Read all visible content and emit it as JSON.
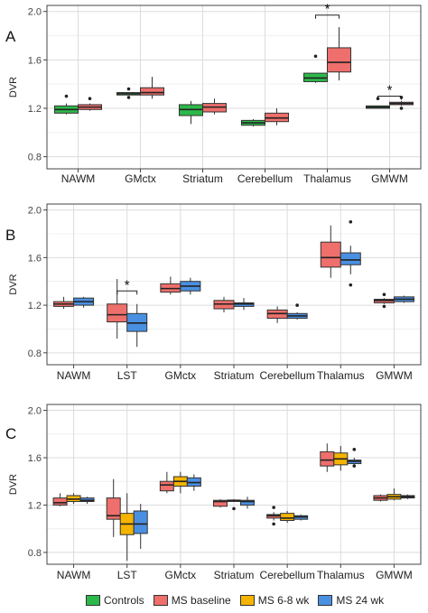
{
  "chart_data": [
    {
      "type": "boxplot",
      "panel_label": "A",
      "ylabel": "DVR",
      "ylim": [
        0.7,
        2.05
      ],
      "yticks": [
        "0.8",
        "1.2",
        "1.6",
        "2.0"
      ],
      "grid": true,
      "categories": [
        "NAWM",
        "GMctx",
        "Striatum",
        "Cerebellum",
        "Thalamus",
        "GMWM"
      ],
      "groups": [
        [
          {
            "group": "Controls",
            "min": 1.15,
            "q1": 1.16,
            "median": 1.19,
            "q3": 1.22,
            "max": 1.24,
            "outliers": [
              1.3
            ]
          },
          {
            "group": "MS baseline",
            "min": 1.18,
            "q1": 1.19,
            "median": 1.21,
            "q3": 1.23,
            "max": 1.24,
            "outliers": [
              1.28
            ]
          }
        ],
        [
          {
            "group": "Controls",
            "min": 1.31,
            "q1": 1.31,
            "median": 1.32,
            "q3": 1.33,
            "max": 1.33,
            "outliers": [
              1.29,
              1.36
            ]
          },
          {
            "group": "MS baseline",
            "min": 1.28,
            "q1": 1.31,
            "median": 1.33,
            "q3": 1.37,
            "max": 1.46,
            "outliers": []
          }
        ],
        [
          {
            "group": "Controls",
            "min": 1.07,
            "q1": 1.14,
            "median": 1.19,
            "q3": 1.23,
            "max": 1.26,
            "outliers": []
          },
          {
            "group": "MS baseline",
            "min": 1.15,
            "q1": 1.17,
            "median": 1.21,
            "q3": 1.24,
            "max": 1.28,
            "outliers": []
          }
        ],
        [
          {
            "group": "Controls",
            "min": 1.05,
            "q1": 1.06,
            "median": 1.08,
            "q3": 1.1,
            "max": 1.11,
            "outliers": []
          },
          {
            "group": "MS baseline",
            "min": 1.06,
            "q1": 1.09,
            "median": 1.12,
            "q3": 1.16,
            "max": 1.2,
            "outliers": []
          }
        ],
        [
          {
            "group": "Controls",
            "min": 1.41,
            "q1": 1.42,
            "median": 1.45,
            "q3": 1.49,
            "max": 1.49,
            "outliers": [
              1.63
            ]
          },
          {
            "group": "MS baseline",
            "min": 1.43,
            "q1": 1.5,
            "median": 1.58,
            "q3": 1.7,
            "max": 1.87,
            "outliers": []
          }
        ],
        [
          {
            "group": "Controls",
            "min": 1.2,
            "q1": 1.2,
            "median": 1.21,
            "q3": 1.22,
            "max": 1.22,
            "outliers": [
              1.28
            ]
          },
          {
            "group": "MS baseline",
            "min": 1.22,
            "q1": 1.23,
            "median": 1.24,
            "q3": 1.25,
            "max": 1.26,
            "outliers": [
              1.2,
              1.29
            ]
          }
        ]
      ],
      "significance": [
        {
          "category": "Thalamus",
          "label": "*",
          "y": 1.97
        },
        {
          "category": "GMWM",
          "label": "*",
          "y": 1.3
        }
      ]
    },
    {
      "type": "boxplot",
      "panel_label": "B",
      "ylabel": "DVR",
      "ylim": [
        0.7,
        2.05
      ],
      "yticks": [
        "0.8",
        "1.2",
        "1.6",
        "2.0"
      ],
      "grid": true,
      "categories": [
        "NAWM",
        "LST",
        "GMctx",
        "Striatum",
        "Cerebellum",
        "Thalamus",
        "GMWM"
      ],
      "groups": [
        [
          {
            "group": "MS baseline",
            "min": 1.17,
            "q1": 1.19,
            "median": 1.21,
            "q3": 1.23,
            "max": 1.27,
            "outliers": []
          },
          {
            "group": "MS 24 wk",
            "min": 1.18,
            "q1": 1.2,
            "median": 1.23,
            "q3": 1.26,
            "max": 1.27,
            "outliers": []
          }
        ],
        [
          {
            "group": "MS baseline",
            "min": 0.92,
            "q1": 1.06,
            "median": 1.12,
            "q3": 1.21,
            "max": 1.42,
            "outliers": []
          },
          {
            "group": "MS 24 wk",
            "min": 0.85,
            "q1": 0.98,
            "median": 1.05,
            "q3": 1.13,
            "max": 1.21,
            "outliers": []
          }
        ],
        [
          {
            "group": "MS baseline",
            "min": 1.29,
            "q1": 1.31,
            "median": 1.34,
            "q3": 1.38,
            "max": 1.44,
            "outliers": []
          },
          {
            "group": "MS 24 wk",
            "min": 1.29,
            "q1": 1.32,
            "median": 1.36,
            "q3": 1.4,
            "max": 1.43,
            "outliers": []
          }
        ],
        [
          {
            "group": "MS baseline",
            "min": 1.14,
            "q1": 1.17,
            "median": 1.21,
            "q3": 1.24,
            "max": 1.27,
            "outliers": []
          },
          {
            "group": "MS 24 wk",
            "min": 1.16,
            "q1": 1.19,
            "median": 1.21,
            "q3": 1.22,
            "max": 1.26,
            "outliers": []
          }
        ],
        [
          {
            "group": "MS baseline",
            "min": 1.05,
            "q1": 1.09,
            "median": 1.13,
            "q3": 1.16,
            "max": 1.19,
            "outliers": []
          },
          {
            "group": "MS 24 wk",
            "min": 1.08,
            "q1": 1.09,
            "median": 1.11,
            "q3": 1.13,
            "max": 1.14,
            "outliers": [
              1.2
            ]
          }
        ],
        [
          {
            "group": "MS baseline",
            "min": 1.43,
            "q1": 1.52,
            "median": 1.6,
            "q3": 1.73,
            "max": 1.87,
            "outliers": []
          },
          {
            "group": "MS 24 wk",
            "min": 1.46,
            "q1": 1.54,
            "median": 1.58,
            "q3": 1.64,
            "max": 1.7,
            "outliers": [
              1.9,
              1.37
            ]
          }
        ],
        [
          {
            "group": "MS baseline",
            "min": 1.21,
            "q1": 1.22,
            "median": 1.24,
            "q3": 1.25,
            "max": 1.26,
            "outliers": [
              1.19,
              1.29
            ]
          },
          {
            "group": "MS 24 wk",
            "min": 1.22,
            "q1": 1.23,
            "median": 1.25,
            "q3": 1.27,
            "max": 1.28,
            "outliers": []
          }
        ]
      ],
      "significance": [
        {
          "category": "LST",
          "label": "*",
          "y": 1.32
        }
      ]
    },
    {
      "type": "boxplot",
      "panel_label": "C",
      "ylabel": "DVR",
      "ylim": [
        0.7,
        2.05
      ],
      "yticks": [
        "0.8",
        "1.2",
        "1.6",
        "2.0"
      ],
      "grid": true,
      "categories": [
        "NAWM",
        "LST",
        "GMctx",
        "Striatum",
        "Cerebellum",
        "Thalamus",
        "GMWM"
      ],
      "groups": [
        [
          {
            "group": "MS baseline",
            "min": 1.19,
            "q1": 1.2,
            "median": 1.22,
            "q3": 1.26,
            "max": 1.3,
            "outliers": []
          },
          {
            "group": "MS 6-8 wk",
            "min": 1.21,
            "q1": 1.23,
            "median": 1.25,
            "q3": 1.28,
            "max": 1.3,
            "outliers": []
          },
          {
            "group": "MS 24 wk",
            "min": 1.21,
            "q1": 1.23,
            "median": 1.24,
            "q3": 1.26,
            "max": 1.27,
            "outliers": []
          }
        ],
        [
          {
            "group": "MS baseline",
            "min": 0.93,
            "q1": 1.08,
            "median": 1.11,
            "q3": 1.26,
            "max": 1.42,
            "outliers": []
          },
          {
            "group": "MS 6-8 wk",
            "min": 0.73,
            "q1": 0.95,
            "median": 1.04,
            "q3": 1.13,
            "max": 1.3,
            "outliers": []
          },
          {
            "group": "MS 24 wk",
            "min": 0.83,
            "q1": 0.96,
            "median": 1.04,
            "q3": 1.15,
            "max": 1.21,
            "outliers": []
          }
        ],
        [
          {
            "group": "MS baseline",
            "min": 1.3,
            "q1": 1.32,
            "median": 1.37,
            "q3": 1.4,
            "max": 1.48,
            "outliers": []
          },
          {
            "group": "MS 6-8 wk",
            "min": 1.3,
            "q1": 1.36,
            "median": 1.4,
            "q3": 1.44,
            "max": 1.48,
            "outliers": []
          },
          {
            "group": "MS 24 wk",
            "min": 1.32,
            "q1": 1.36,
            "median": 1.39,
            "q3": 1.43,
            "max": 1.46,
            "outliers": []
          }
        ],
        [
          {
            "group": "MS baseline",
            "min": 1.18,
            "q1": 1.19,
            "median": 1.23,
            "q3": 1.24,
            "max": 1.25,
            "outliers": []
          },
          {
            "group": "MS 6-8 wk",
            "min": 1.23,
            "q1": 1.23,
            "median": 1.24,
            "q3": 1.24,
            "max": 1.25,
            "outliers": [
              1.17
            ]
          },
          {
            "group": "MS 24 wk",
            "min": 1.17,
            "q1": 1.2,
            "median": 1.23,
            "q3": 1.24,
            "max": 1.27,
            "outliers": []
          }
        ],
        [
          {
            "group": "MS baseline",
            "min": 1.07,
            "q1": 1.09,
            "median": 1.11,
            "q3": 1.12,
            "max": 1.14,
            "outliers": [
              1.04,
              1.18
            ]
          },
          {
            "group": "MS 6-8 wk",
            "min": 1.05,
            "q1": 1.07,
            "median": 1.09,
            "q3": 1.13,
            "max": 1.15,
            "outliers": []
          },
          {
            "group": "MS 24 wk",
            "min": 1.07,
            "q1": 1.08,
            "median": 1.1,
            "q3": 1.11,
            "max": 1.12,
            "outliers": []
          }
        ],
        [
          {
            "group": "MS baseline",
            "min": 1.48,
            "q1": 1.53,
            "median": 1.58,
            "q3": 1.65,
            "max": 1.72,
            "outliers": []
          },
          {
            "group": "MS 6-8 wk",
            "min": 1.49,
            "q1": 1.54,
            "median": 1.59,
            "q3": 1.64,
            "max": 1.7,
            "outliers": []
          },
          {
            "group": "MS 24 wk",
            "min": 1.52,
            "q1": 1.55,
            "median": 1.57,
            "q3": 1.58,
            "max": 1.6,
            "outliers": [
              1.67,
              1.53
            ]
          }
        ],
        [
          {
            "group": "MS baseline",
            "min": 1.23,
            "q1": 1.24,
            "median": 1.26,
            "q3": 1.28,
            "max": 1.29,
            "outliers": []
          },
          {
            "group": "MS 6-8 wk",
            "min": 1.24,
            "q1": 1.25,
            "median": 1.27,
            "q3": 1.29,
            "max": 1.34,
            "outliers": []
          },
          {
            "group": "MS 24 wk",
            "min": 1.25,
            "q1": 1.26,
            "median": 1.27,
            "q3": 1.28,
            "max": 1.29,
            "outliers": []
          }
        ]
      ],
      "significance": []
    }
  ],
  "legend": {
    "position": "bottom",
    "items": [
      {
        "label": "Controls",
        "color": "#2db84a"
      },
      {
        "label": "MS baseline",
        "color": "#ee6f6b"
      },
      {
        "label": "MS 6-8 wk",
        "color": "#f4b400"
      },
      {
        "label": "MS 24 wk",
        "color": "#4a90e2"
      }
    ]
  }
}
